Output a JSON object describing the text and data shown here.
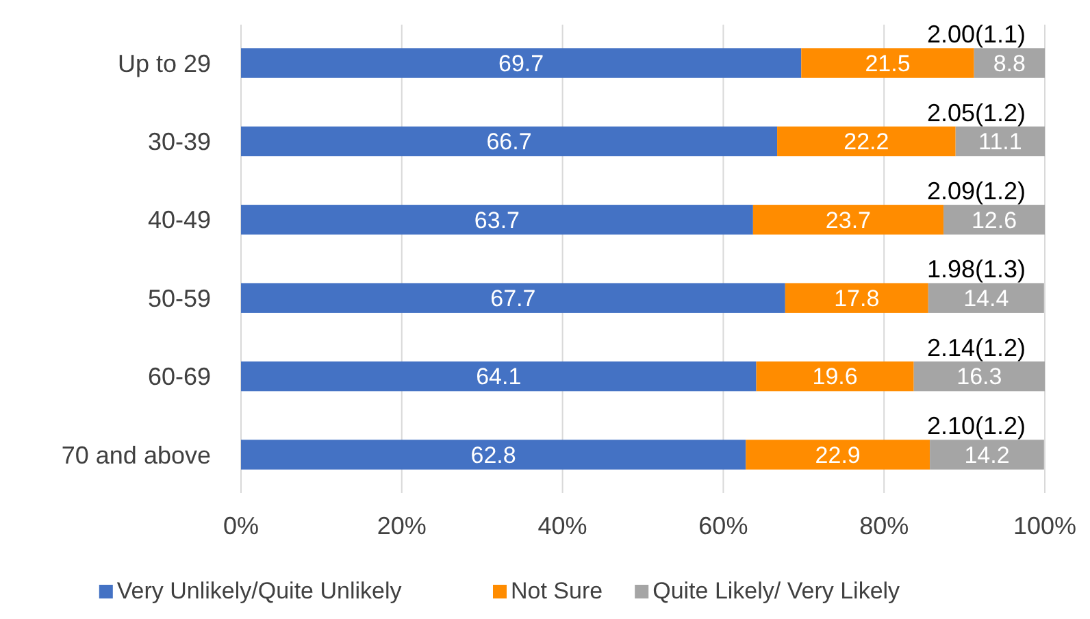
{
  "chart_data": {
    "type": "bar",
    "orientation": "horizontal",
    "stacked": true,
    "categories": [
      "Up to 29",
      "30-39",
      "40-49",
      "50-59",
      "60-69",
      "70 and above"
    ],
    "series": [
      {
        "name": "Very Unlikely/Quite Unlikely",
        "color": "#4472c4",
        "values": [
          69.7,
          66.7,
          63.7,
          67.7,
          64.1,
          62.8
        ]
      },
      {
        "name": "Not Sure",
        "color": "#ff8c00",
        "values": [
          21.5,
          22.2,
          23.7,
          17.8,
          19.6,
          22.9
        ]
      },
      {
        "name": "Quite Likely/ Very Likely",
        "color": "#a5a5a5",
        "values": [
          8.8,
          11.1,
          12.6,
          14.4,
          16.3,
          14.2
        ]
      }
    ],
    "totals": [
      "2.00(1.1)",
      "2.05(1.2)",
      "2.09(1.2)",
      "1.98(1.3)",
      "2.14(1.2)",
      "2.10(1.2)"
    ],
    "xlim": [
      0,
      100
    ],
    "xticks": [
      {
        "value": 0,
        "label": "0%"
      },
      {
        "value": 20,
        "label": "20%"
      },
      {
        "value": 40,
        "label": "40%"
      },
      {
        "value": 60,
        "label": "60%"
      },
      {
        "value": 80,
        "label": "80%"
      },
      {
        "value": 100,
        "label": "100%"
      }
    ],
    "grid": "x",
    "data_labels": true,
    "legend": "bottom"
  }
}
